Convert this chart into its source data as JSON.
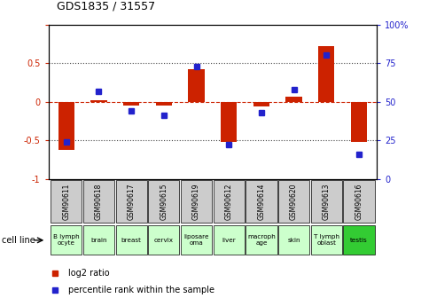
{
  "title": "GDS1835 / 31557",
  "samples": [
    "GSM90611",
    "GSM90618",
    "GSM90617",
    "GSM90615",
    "GSM90619",
    "GSM90612",
    "GSM90614",
    "GSM90620",
    "GSM90613",
    "GSM90616"
  ],
  "cell_lines": [
    "B lymph\nocyte",
    "brain",
    "breast",
    "cervix",
    "liposare\noma",
    "liver",
    "macroph\nage",
    "skin",
    "T lymph\noblast",
    "testis"
  ],
  "cell_line_colors": [
    "#ccffcc",
    "#ccffcc",
    "#ccffcc",
    "#ccffcc",
    "#ccffcc",
    "#ccffcc",
    "#ccffcc",
    "#ccffcc",
    "#ccffcc",
    "#33cc33"
  ],
  "log2_ratio": [
    -0.62,
    0.02,
    -0.05,
    -0.05,
    0.42,
    -0.52,
    -0.06,
    0.06,
    0.72,
    -0.52
  ],
  "percentile_rank": [
    24,
    57,
    44,
    41,
    73,
    22,
    43,
    58,
    80,
    16
  ],
  "ylim_left": [
    -1,
    1
  ],
  "ylim_right": [
    0,
    100
  ],
  "yticks_left": [
    -1,
    -0.5,
    0,
    0.5,
    1
  ],
  "yticks_right": [
    0,
    25,
    50,
    75,
    100
  ],
  "bar_color": "#cc2200",
  "dot_color": "#2222cc",
  "hline_color": "#cc2200",
  "dotted_color": "#444444",
  "bg_color": "#ffffff",
  "sample_box_color": "#cccccc",
  "cell_line_bg_default": "#ccffcc",
  "cell_line_bg_highlight": "#33cc33"
}
